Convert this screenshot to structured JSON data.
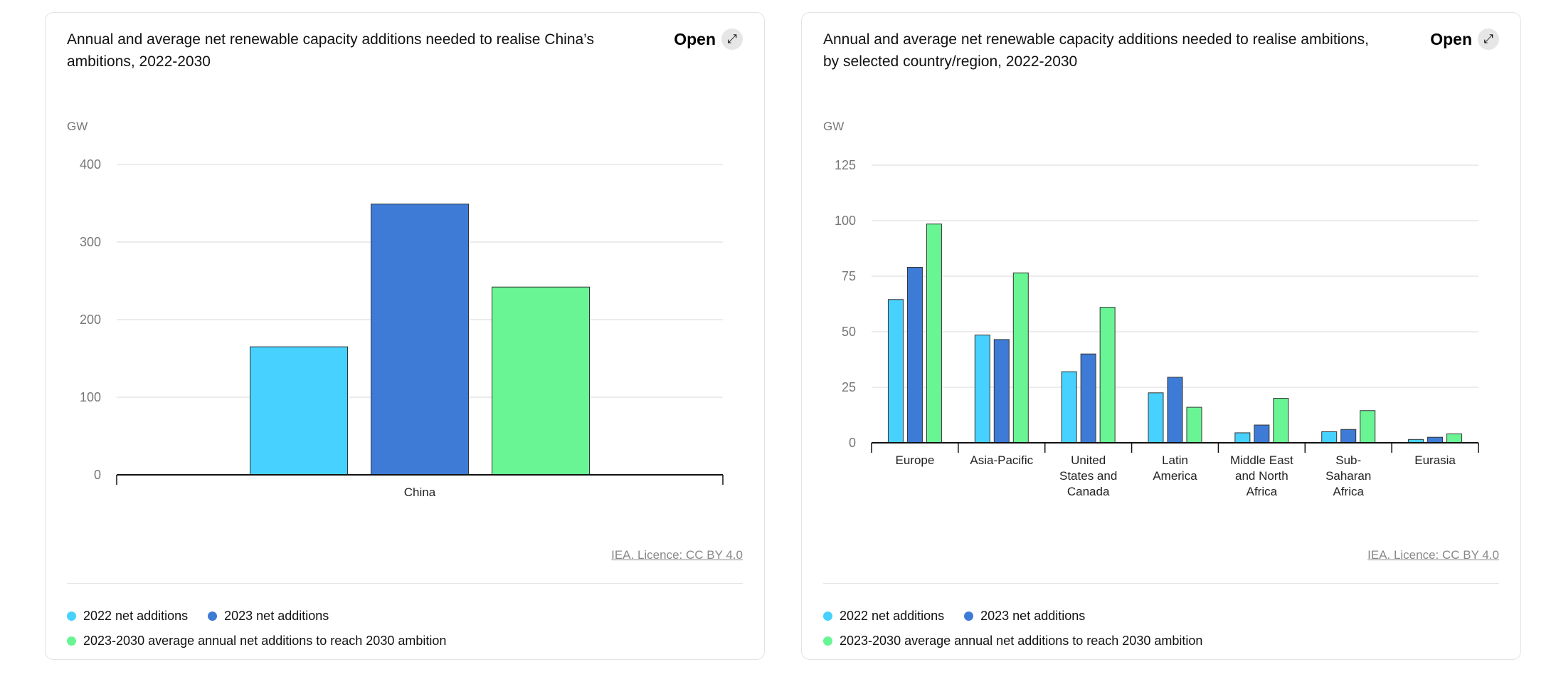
{
  "legend": {
    "s0": "2022 net additions",
    "s1": "2023 net additions",
    "s2": "2023-2030 average annual net additions to reach 2030 ambition"
  },
  "colors": [
    "#47d1fe",
    "#3e7bd6",
    "#69f593"
  ],
  "open_label": "Open",
  "open_icon": "expand-arrow-icon",
  "licence": "IEA. Licence: CC BY 4.0",
  "chart_data": [
    {
      "type": "bar",
      "title": "Annual and average net renewable capacity additions needed to realise China’s ambitions, 2022-2030",
      "ylabel": "GW",
      "ylim": [
        0,
        400
      ],
      "yticks": [
        0,
        100,
        200,
        300,
        400
      ],
      "categories": [
        "China"
      ],
      "series": [
        {
          "name": "2022 net additions",
          "values": [
            165
          ]
        },
        {
          "name": "2023 net additions",
          "values": [
            349
          ]
        },
        {
          "name": "2023-2030 average annual net additions to reach 2030 ambition",
          "values": [
            242
          ]
        }
      ],
      "grid": true,
      "legend": "bottom"
    },
    {
      "type": "bar",
      "title": "Annual and average net renewable capacity additions needed to realise ambitions, by selected country/region, 2022-2030",
      "ylabel": "GW",
      "ylim": [
        0,
        125
      ],
      "yticks": [
        0,
        25,
        50,
        75,
        100,
        125
      ],
      "categories": [
        "Europe",
        "Asia-Pacific",
        "United States and Canada",
        "Latin America",
        "Middle East and North Africa",
        "Sub-Saharan Africa",
        "Eurasia"
      ],
      "category_lines": [
        [
          "Europe"
        ],
        [
          "Asia-Pacific"
        ],
        [
          "United",
          "States and",
          "Canada"
        ],
        [
          "Latin",
          "America"
        ],
        [
          "Middle East",
          "and North",
          "Africa"
        ],
        [
          "Sub-",
          "Saharan",
          "Africa"
        ],
        [
          "Eurasia"
        ]
      ],
      "series": [
        {
          "name": "2022 net additions",
          "values": [
            64.5,
            48.5,
            32,
            22.5,
            4.5,
            5,
            1.5
          ]
        },
        {
          "name": "2023 net additions",
          "values": [
            79,
            46.5,
            40,
            29.5,
            8,
            6,
            2.5
          ]
        },
        {
          "name": "2023-2030 average annual net additions to reach 2030 ambition",
          "values": [
            98.5,
            76.5,
            61,
            16,
            20,
            14.5,
            4
          ]
        }
      ],
      "grid": true,
      "legend": "bottom"
    }
  ]
}
